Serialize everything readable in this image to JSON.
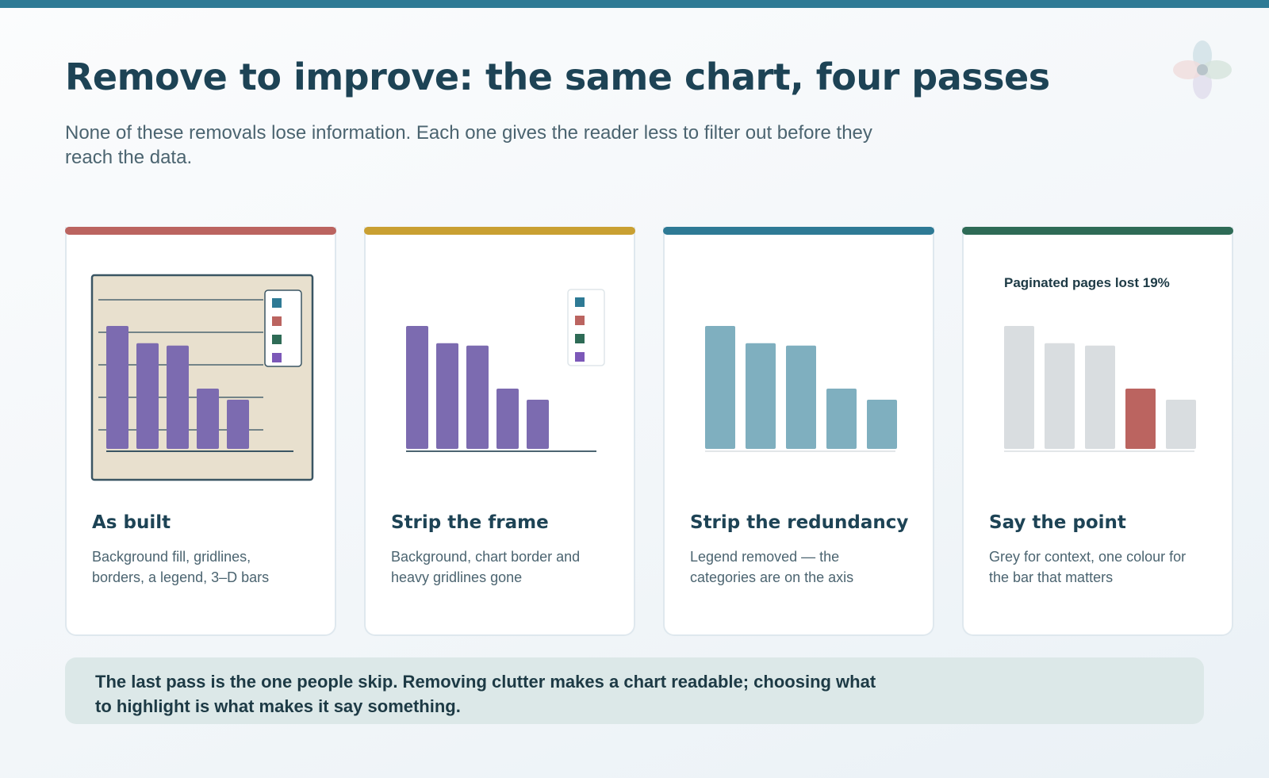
{
  "page": {
    "title": "Remove to improve: the same chart, four passes",
    "subtitle": "None of these removals lose information. Each one gives the reader less to filter out before they reach the data.",
    "note": "The last pass is the one people skip. Removing clutter makes a chart readable; choosing what to highlight is what makes it say something.",
    "logo_icon": "four-petal-logo-icon"
  },
  "colors": {
    "topbar": "#2e7a95",
    "purple": "#7c6bb0",
    "teal": "#7fafbf",
    "grey": "#d9dde0",
    "highlight": "#bb6460",
    "frame_bg": "#e8e0ce",
    "legend_swatches": [
      "#2e7a95",
      "#bb6460",
      "#2e6b56",
      "#7c58b8"
    ]
  },
  "cards": [
    {
      "key": "as-built",
      "title": "As built",
      "desc": "Background fill, gridlines, borders, a legend, 3–D bars",
      "accent": "#bb6460"
    },
    {
      "key": "strip-frame",
      "title": "Strip the frame",
      "desc": "Background, chart border and heavy gridlines gone",
      "accent": "#c9a032"
    },
    {
      "key": "strip-redundancy",
      "title": "Strip the redundancy",
      "desc": "Legend removed — the categories are on the axis",
      "accent": "#2e7a95"
    },
    {
      "key": "say-point",
      "title": "Say the point",
      "desc": "Grey for context, one colour for the bar that matters",
      "accent": "#2e6b56"
    }
  ],
  "chart_data": [
    {
      "type": "bar",
      "panel": "As built",
      "values": [
        100,
        86,
        84,
        49,
        40
      ],
      "highlight_index": null,
      "gridlines": true,
      "background": true,
      "border": true,
      "legend": true,
      "legend_placement": "top-right"
    },
    {
      "type": "bar",
      "panel": "Strip the frame",
      "values": [
        100,
        86,
        84,
        49,
        40
      ],
      "highlight_index": null,
      "gridlines": false,
      "background": false,
      "border": false,
      "legend": true,
      "legend_placement": "top-right"
    },
    {
      "type": "bar",
      "panel": "Strip the redundancy",
      "values": [
        100,
        86,
        84,
        49,
        40
      ],
      "highlight_index": null,
      "gridlines": false,
      "background": false,
      "border": false,
      "legend": false
    },
    {
      "type": "bar",
      "panel": "Say the point",
      "values": [
        100,
        86,
        84,
        49,
        40
      ],
      "highlight_index": 3,
      "annotation": "Paginated pages lost 19%",
      "gridlines": false,
      "background": false,
      "border": false,
      "legend": false
    }
  ]
}
